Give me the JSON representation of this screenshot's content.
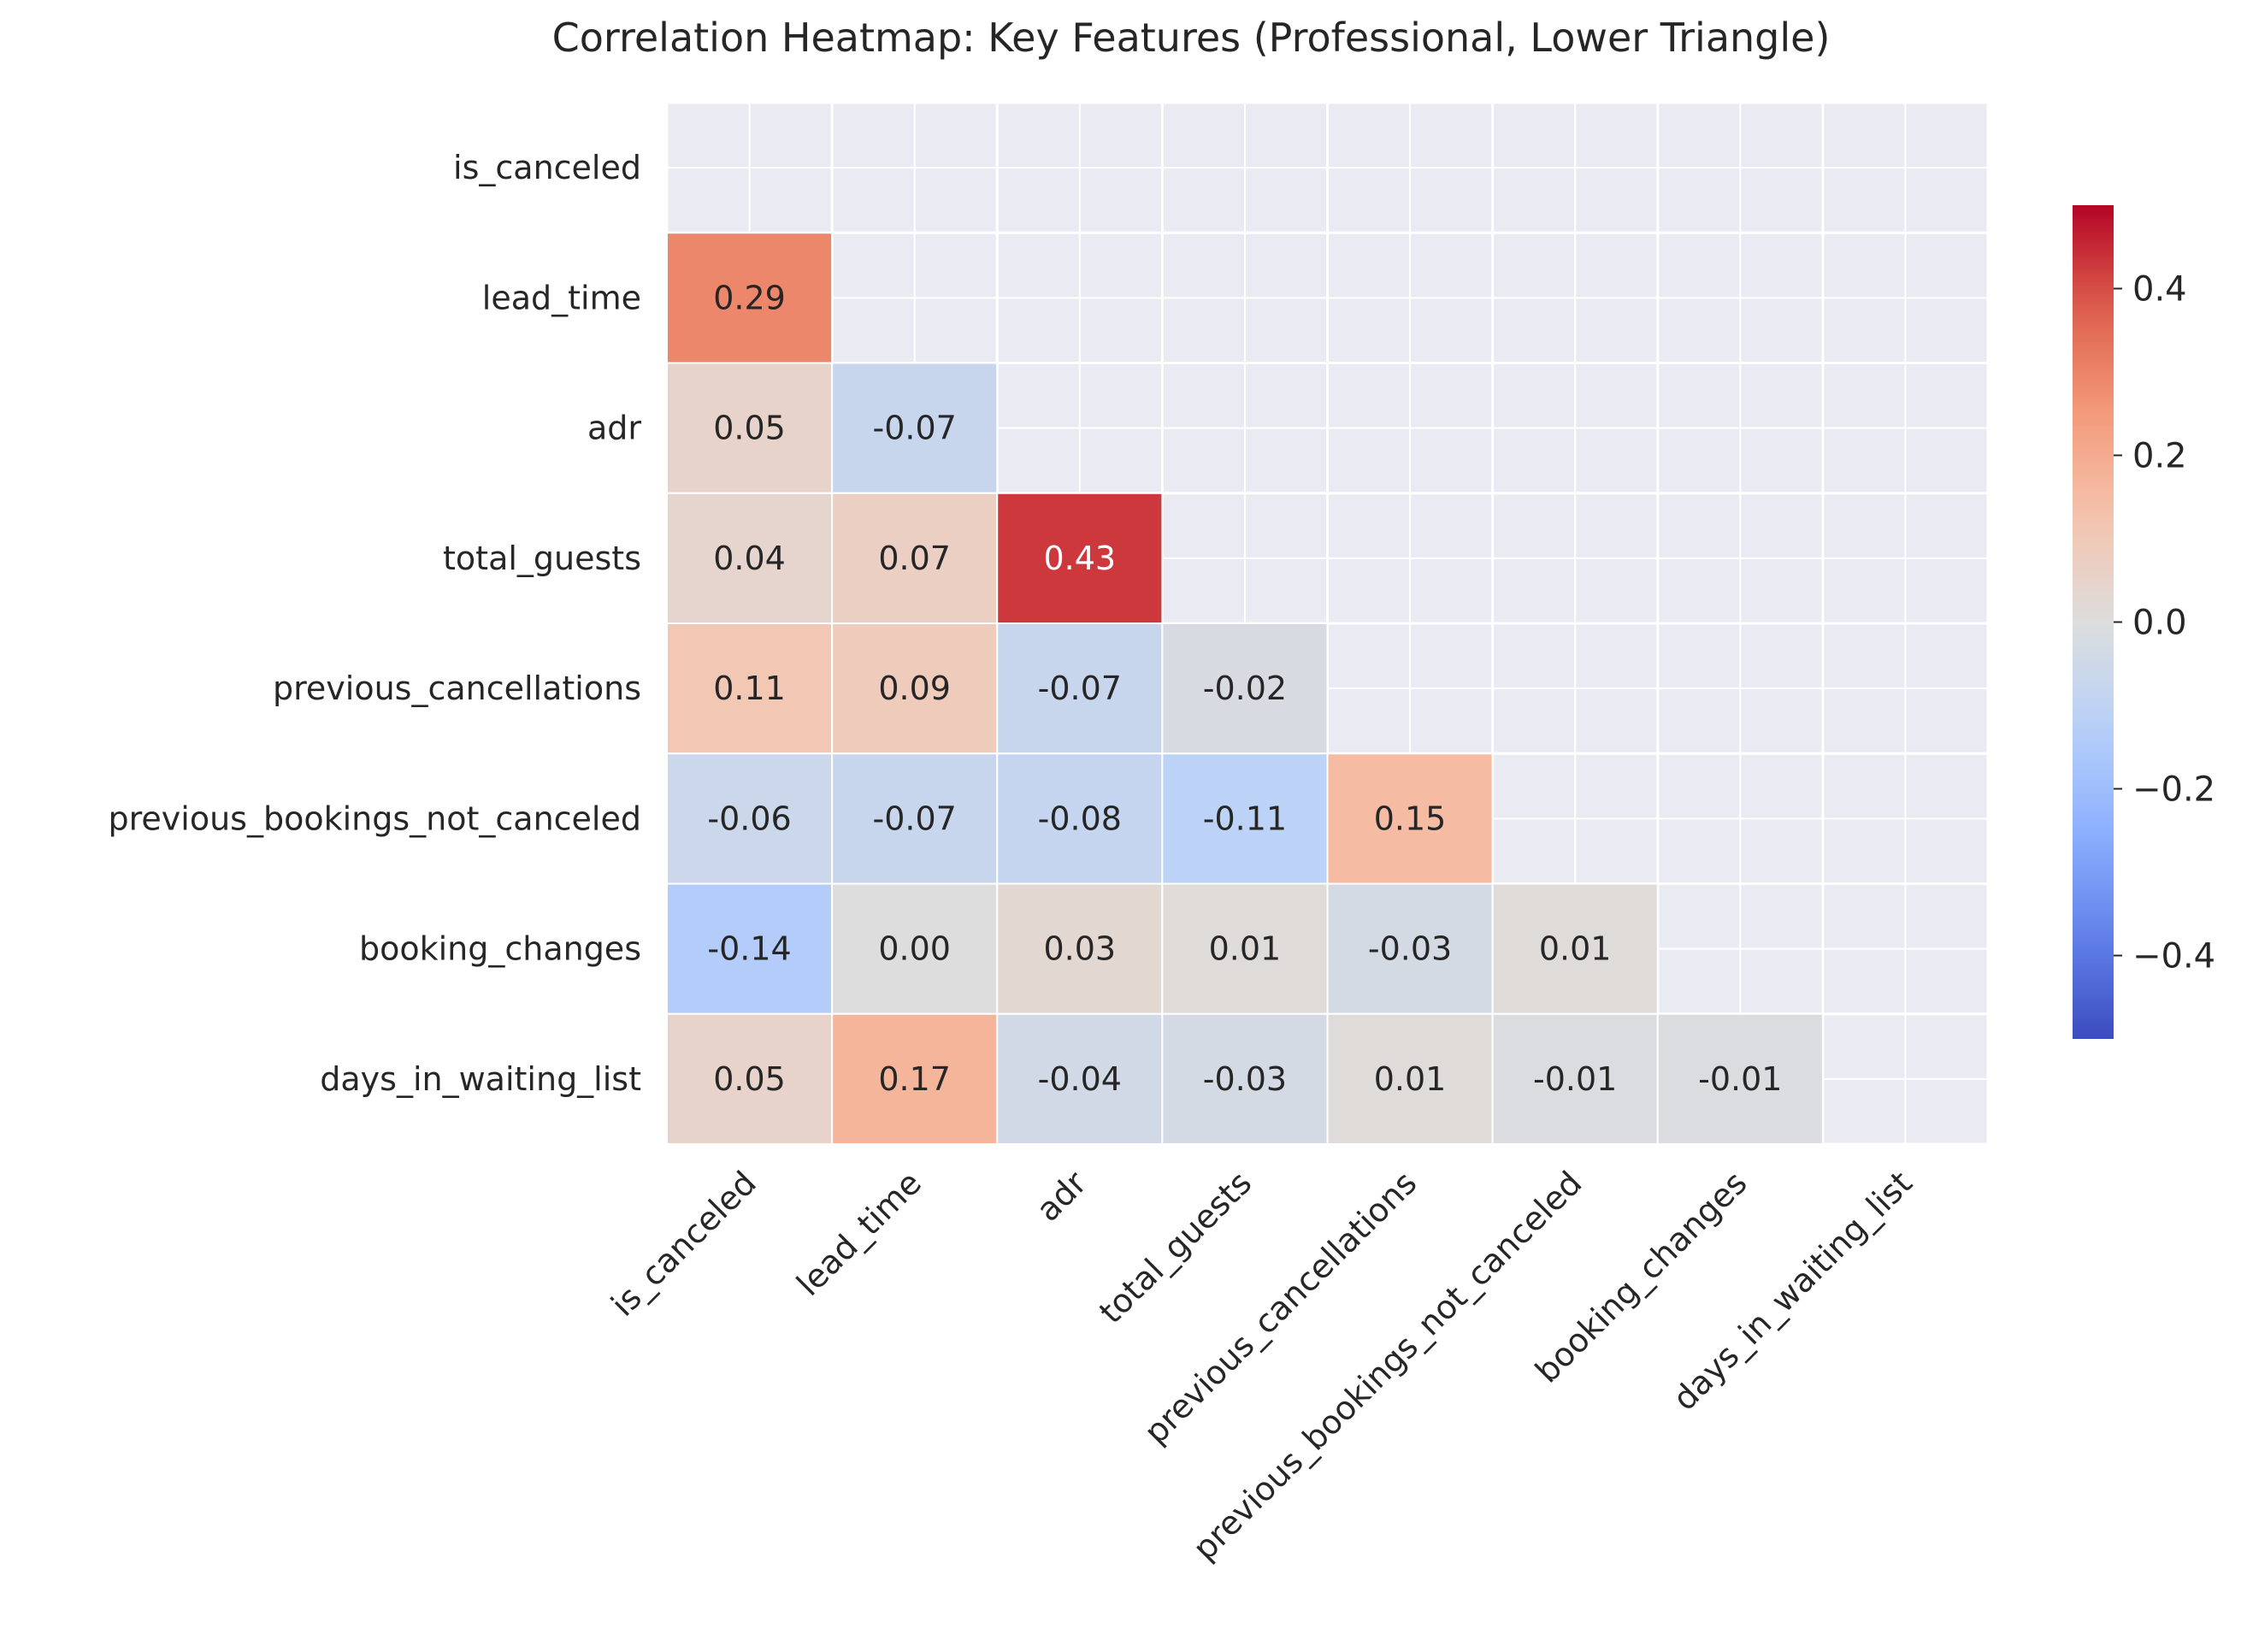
{
  "chart_data": {
    "type": "heatmap",
    "title": "Correlation Heatmap: Key Features (Professional, Lower Triangle)",
    "variables": [
      "is_canceled",
      "lead_time",
      "adr",
      "total_guests",
      "previous_cancellations",
      "previous_bookings_not_canceled",
      "booking_changes",
      "days_in_waiting_list"
    ],
    "mask": "upper-triangle-including-diagonal",
    "values": [
      [
        null,
        null,
        null,
        null,
        null,
        null,
        null,
        null
      ],
      [
        0.29,
        null,
        null,
        null,
        null,
        null,
        null,
        null
      ],
      [
        0.05,
        -0.07,
        null,
        null,
        null,
        null,
        null,
        null
      ],
      [
        0.04,
        0.07,
        0.43,
        null,
        null,
        null,
        null,
        null
      ],
      [
        0.11,
        0.09,
        -0.07,
        -0.02,
        null,
        null,
        null,
        null
      ],
      [
        -0.06,
        -0.07,
        -0.08,
        -0.11,
        0.15,
        null,
        null,
        null
      ],
      [
        -0.14,
        0.0,
        0.03,
        0.01,
        -0.03,
        0.01,
        null,
        null
      ],
      [
        0.05,
        0.17,
        -0.04,
        -0.03,
        0.01,
        -0.01,
        -0.01,
        null
      ]
    ],
    "labels": [
      [
        "",
        "",
        "",
        "",
        "",
        "",
        "",
        ""
      ],
      [
        "0.29",
        "",
        "",
        "",
        "",
        "",
        "",
        ""
      ],
      [
        "0.05",
        "-0.07",
        "",
        "",
        "",
        "",
        "",
        ""
      ],
      [
        "0.04",
        "0.07",
        "0.43",
        "",
        "",
        "",
        "",
        ""
      ],
      [
        "0.11",
        "0.09",
        "-0.07",
        "-0.02",
        "",
        "",
        "",
        ""
      ],
      [
        "-0.06",
        "-0.07",
        "-0.08",
        "-0.11",
        "0.15",
        "",
        "",
        ""
      ],
      [
        "-0.14",
        "0.00",
        "0.03",
        "0.01",
        "-0.03",
        "0.01",
        "",
        ""
      ],
      [
        "0.05",
        "0.17",
        "-0.04",
        "-0.03",
        "0.01",
        "-0.01",
        "-0.01",
        ""
      ]
    ],
    "colormap": "coolwarm",
    "vmin": -0.5,
    "vmax": 0.5,
    "colorbar_ticks": [
      0.4,
      0.2,
      0.0,
      -0.2,
      -0.4
    ],
    "colorbar_tick_labels": [
      "0.4",
      "0.2",
      "0.0",
      "−0.2",
      "−0.4"
    ],
    "grid": true,
    "colors": {
      "background": "#eaeaf2",
      "grid": "#ffffff",
      "text_dark": "#262626",
      "text_light": "#ffffff"
    }
  }
}
